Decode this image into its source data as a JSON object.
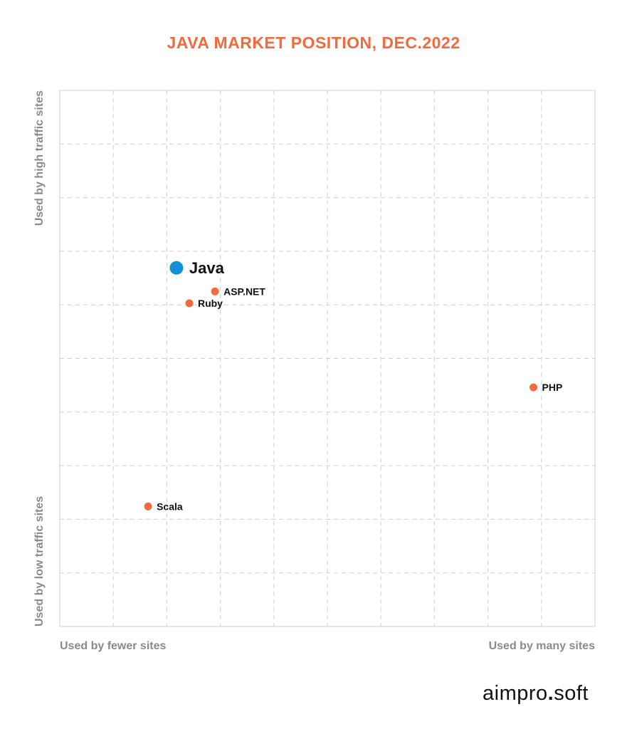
{
  "colors": {
    "accent": "#f26a3d",
    "highlight": "#1490d8",
    "grid": "#cfcfcf",
    "axis_text": "#8a8a8a"
  },
  "chart_data": {
    "type": "scatter",
    "title": "JAVA MARKET POSITION, DEC.2022",
    "xlim": [
      0,
      10
    ],
    "ylim": [
      0,
      10
    ],
    "grid": true,
    "x_axis": {
      "left_label": "Used by fewer sites",
      "right_label": "Used by many sites"
    },
    "y_axis": {
      "bottom_label": "Used by low traffic sites",
      "top_label": "Used by high traffic sites"
    },
    "points": [
      {
        "label": "Java",
        "x": 2.18,
        "y": 6.69,
        "highlight": true
      },
      {
        "label": "ASP.NET",
        "x": 2.9,
        "y": 6.25,
        "highlight": false
      },
      {
        "label": "Ruby",
        "x": 2.42,
        "y": 6.03,
        "highlight": false
      },
      {
        "label": "PHP",
        "x": 8.85,
        "y": 4.46,
        "highlight": false
      },
      {
        "label": "Scala",
        "x": 1.65,
        "y": 2.24,
        "highlight": false
      }
    ]
  },
  "logo": {
    "left": "aimpro",
    "dot": ".",
    "right": "soft"
  }
}
